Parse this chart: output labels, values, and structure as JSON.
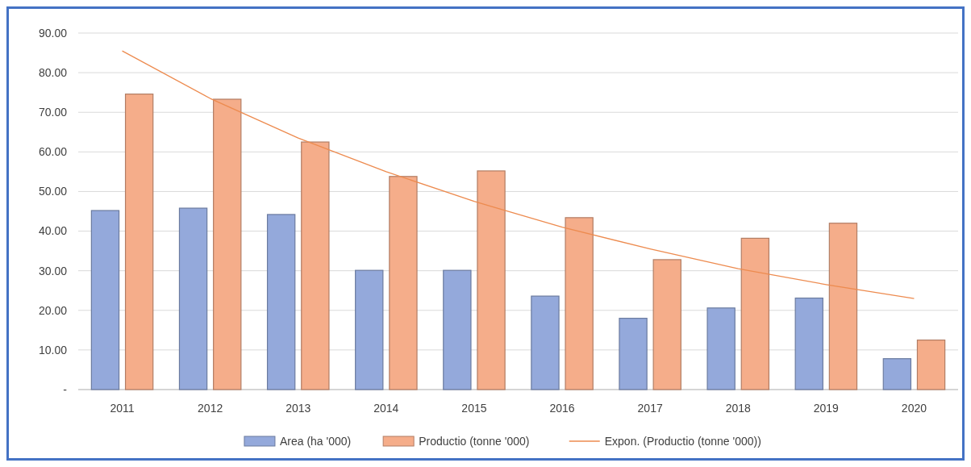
{
  "chart_data": {
    "type": "bar",
    "categories": [
      "2011",
      "2012",
      "2013",
      "2014",
      "2015",
      "2016",
      "2017",
      "2018",
      "2019",
      "2020"
    ],
    "series": [
      {
        "name": "Area (ha '000)",
        "color": "#94a9db",
        "values": [
          45.2,
          45.8,
          44.2,
          30.1,
          30.1,
          23.6,
          18.0,
          20.6,
          23.1,
          7.8
        ]
      },
      {
        "name": "Productio (tonne '000)",
        "color": "#f5ad8a",
        "values": [
          74.6,
          73.3,
          62.5,
          53.8,
          55.2,
          43.4,
          32.8,
          38.2,
          42.0,
          12.5
        ]
      },
      {
        "name": "Expon. (Productio (tonne '000))",
        "type": "line",
        "color": "#ed8b4f",
        "values": [
          85.5,
          73.5,
          63.5,
          55.0,
          47.5,
          41.0,
          35.5,
          30.5,
          26.5,
          23.0
        ]
      }
    ],
    "ylim": [
      0,
      90
    ],
    "yticks": [
      {
        "value": 0,
        "label": "-"
      },
      {
        "value": 10,
        "label": "10.00"
      },
      {
        "value": 20,
        "label": "20.00"
      },
      {
        "value": 30,
        "label": "30.00"
      },
      {
        "value": 40,
        "label": "40.00"
      },
      {
        "value": 50,
        "label": "50.00"
      },
      {
        "value": 60,
        "label": "60.00"
      },
      {
        "value": 70,
        "label": "70.00"
      },
      {
        "value": 80,
        "label": "80.00"
      },
      {
        "value": 90,
        "label": "90.00"
      }
    ],
    "grid": "y",
    "legend": "bottom",
    "marker": "none",
    "line_style": "solid"
  }
}
